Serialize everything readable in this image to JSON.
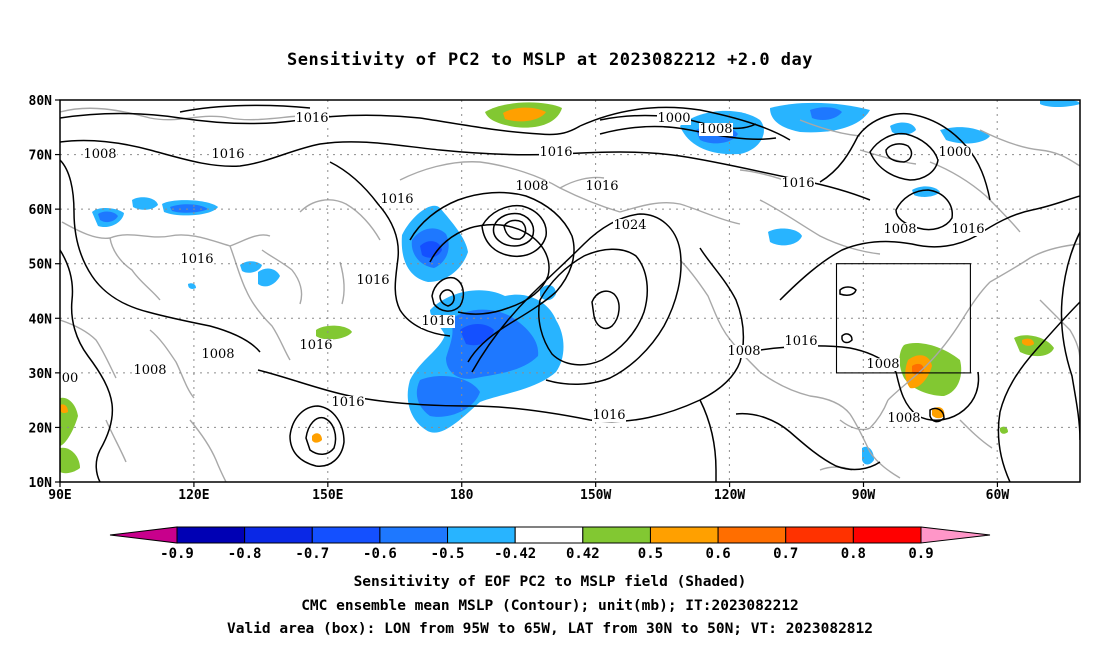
{
  "title": "Sensitivity of PC2 to MSLP at 2023082212 +2.0 day",
  "axes": {
    "lat_labels": [
      "80N",
      "70N",
      "60N",
      "50N",
      "40N",
      "30N",
      "20N",
      "10N"
    ],
    "lon_labels": [
      "90E",
      "120E",
      "150E",
      "180",
      "150W",
      "120W",
      "90W",
      "60W"
    ]
  },
  "contour_labels": [
    "1016",
    "1008",
    "1016",
    "1000",
    "1008",
    "1016",
    "1008",
    "1016",
    "1016",
    "1000",
    "1016",
    "1016",
    "1016",
    "1024",
    "1008",
    "1016",
    "1016",
    "1008",
    "1008",
    "1016",
    "1008",
    "1016",
    "1008",
    "1016",
    "1008",
    "1016",
    "00"
  ],
  "valid_box": {
    "lon": [
      -95,
      -65
    ],
    "lat": [
      30,
      50
    ]
  },
  "colorbar": {
    "labels": [
      "-0.9",
      "-0.8",
      "-0.7",
      "-0.6",
      "-0.5",
      "-0.42",
      "0.42",
      "0.5",
      "0.6",
      "0.7",
      "0.8",
      "0.9"
    ],
    "colors": [
      "#0000b4",
      "#0a28e6",
      "#1450ff",
      "#1e78ff",
      "#28b4ff",
      "#ffffff",
      "#82c832",
      "#ffa000",
      "#ff6e00",
      "#ff3200",
      "#ff0000"
    ],
    "end_low_color": "#c8008c",
    "end_high_color": "#ff96c8"
  },
  "captions": [
    "Sensitivity of EOF PC2 to MSLP field (Shaded)",
    "CMC ensemble mean MSLP (Contour); unit(mb); IT:2023082212",
    "Valid area (box): LON from 95W to 65W, LAT from 30N to 50N; VT: 2023082812"
  ]
}
